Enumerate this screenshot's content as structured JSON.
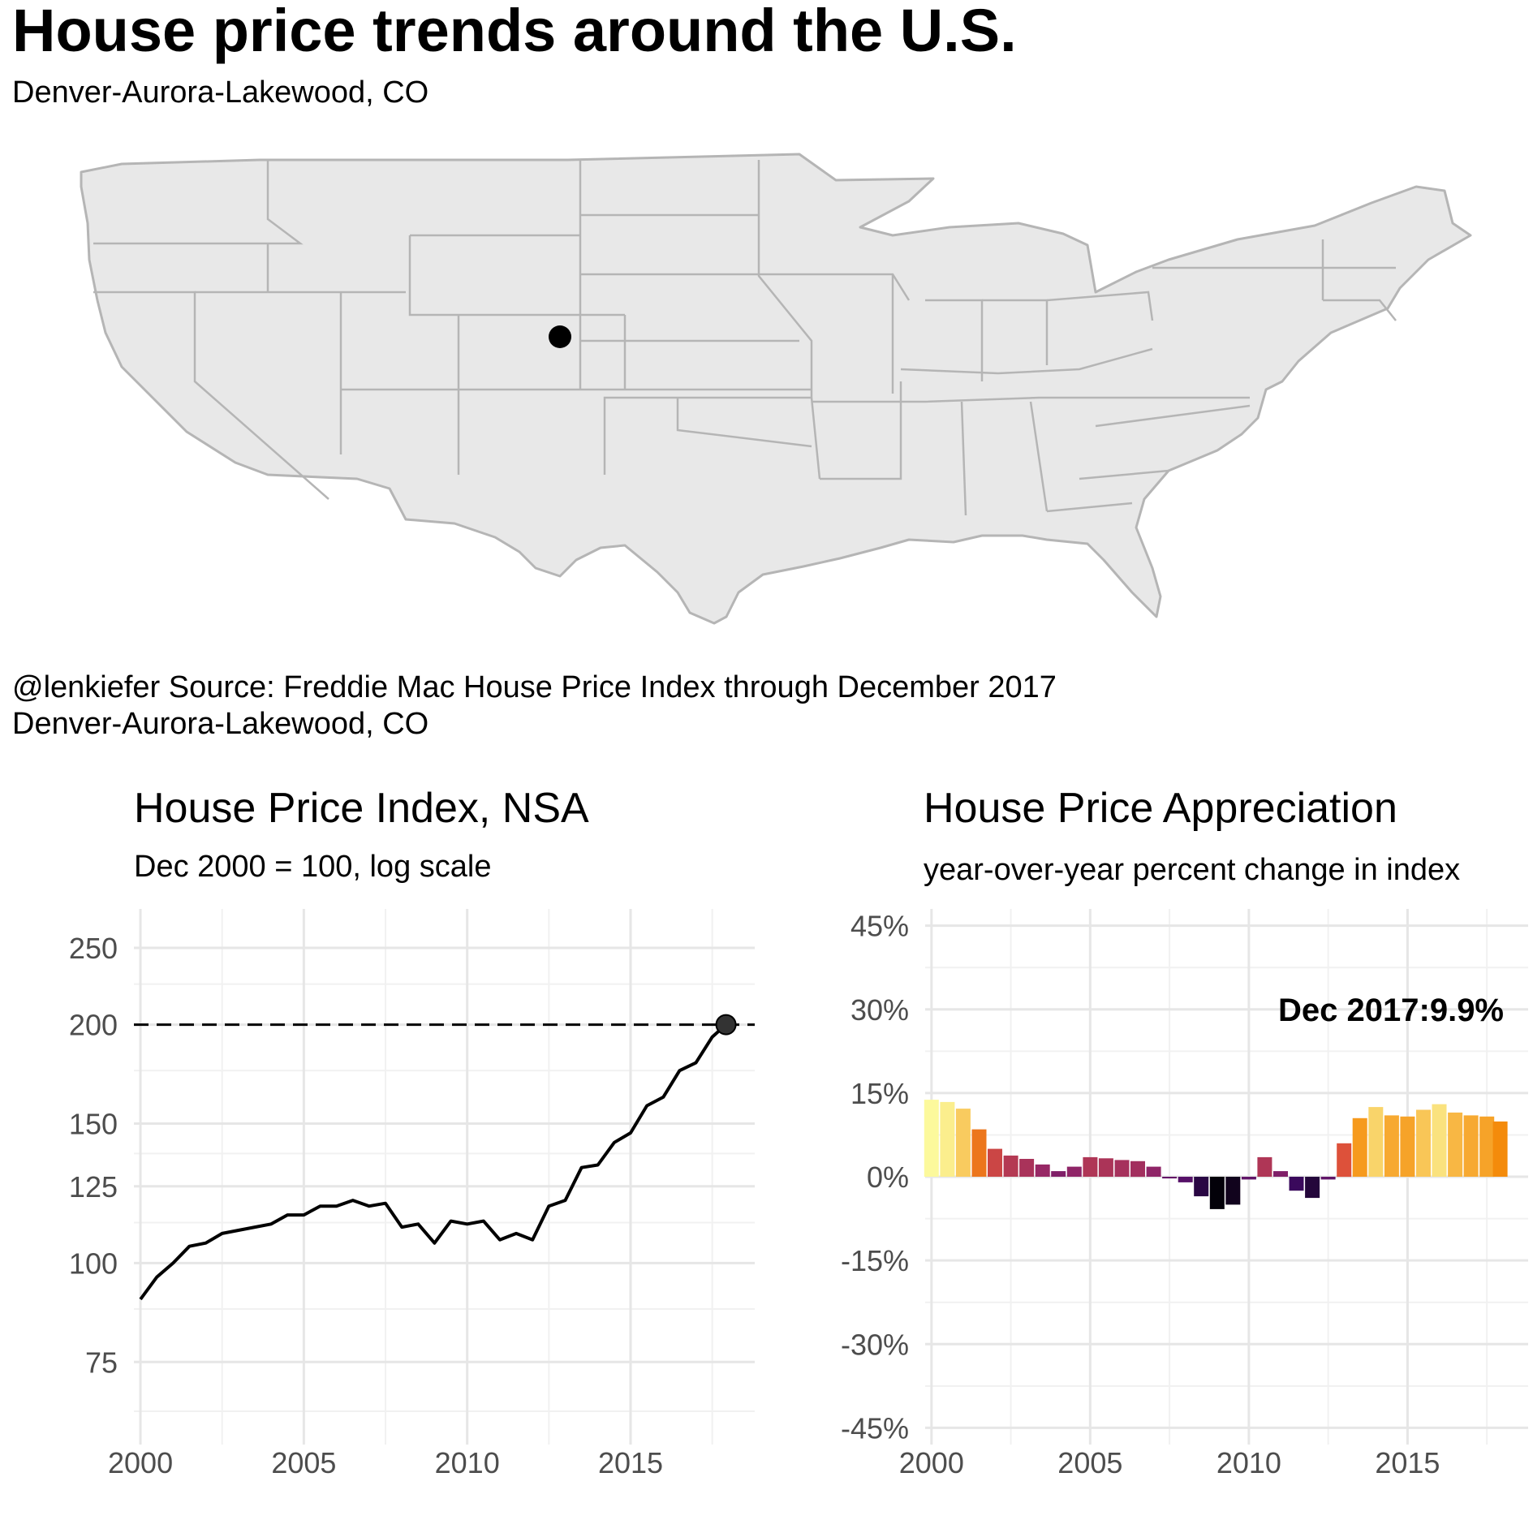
{
  "header": {
    "title": "House price trends around the U.S.",
    "subtitle": "Denver-Aurora-Lakewood, CO"
  },
  "map": {
    "fill": "#e8e8e8",
    "border": "#b5b5b5",
    "marker_color": "#000000",
    "marker_label": "Denver-Aurora-Lakewood, CO"
  },
  "caption": {
    "line1": "@lenkiefer Source: Freddie Mac House Price Index through December 2017",
    "line2": "Denver-Aurora-Lakewood, CO"
  },
  "chart_data": [
    {
      "type": "line",
      "title": "House Price Index, NSA",
      "subtitle": "Dec 2000 = 100, log scale",
      "xlabel": "",
      "ylabel": "",
      "log_scale": true,
      "xlim": [
        1999.8,
        2018.8
      ],
      "ylim": [
        59,
        280
      ],
      "x_ticks": [
        2000,
        2005,
        2010,
        2015
      ],
      "y_ticks": [
        75,
        100,
        125,
        150,
        200,
        250
      ],
      "reference_line": {
        "y": 200,
        "style": "dashed"
      },
      "end_point": {
        "x": 2017.92,
        "y": 200
      },
      "series": [
        {
          "x": [
            2000.0,
            2000.5,
            2001.0,
            2001.5,
            2002.0,
            2002.5,
            2003.0,
            2003.5,
            2004.0,
            2004.5,
            2005.0,
            2005.5,
            2006.0,
            2006.5,
            2007.0,
            2007.5,
            2008.0,
            2008.5,
            2009.0,
            2009.5,
            2010.0,
            2010.5,
            2011.0,
            2011.5,
            2012.0,
            2012.5,
            2013.0,
            2013.5,
            2014.0,
            2014.5,
            2015.0,
            2015.5,
            2016.0,
            2016.5,
            2017.0,
            2017.5,
            2017.92
          ],
          "values": [
            90,
            96,
            100,
            105,
            106,
            109,
            110,
            111,
            112,
            115,
            115,
            118,
            118,
            120,
            118,
            119,
            111,
            112,
            106,
            113,
            112,
            113,
            107,
            109,
            107,
            118,
            120,
            132,
            133,
            142,
            146,
            158,
            162,
            175,
            179,
            193,
            200
          ]
        }
      ]
    },
    {
      "type": "bar",
      "title": "House Price Appreciation",
      "subtitle": "year-over-year percent change in index",
      "xlabel": "",
      "ylabel": "",
      "xlim": [
        1999.8,
        2018.8
      ],
      "ylim": [
        -48,
        48
      ],
      "x_ticks": [
        2000,
        2005,
        2010,
        2015
      ],
      "y_ticks": [
        -45,
        -30,
        -15,
        0,
        15,
        30,
        45
      ],
      "y_tick_labels": [
        "-45%",
        "-30%",
        "-15%",
        "0%",
        "15%",
        "30%",
        "45%"
      ],
      "annotation": "Dec 2017:9.9%",
      "series": [
        {
          "name": "",
          "x": [
            2000.0,
            2000.5,
            2001.0,
            2001.5,
            2002.0,
            2002.5,
            2003.0,
            2003.5,
            2004.0,
            2004.5,
            2005.0,
            2005.5,
            2006.0,
            2006.5,
            2007.0,
            2007.5,
            2008.0,
            2008.5,
            2009.0,
            2009.5,
            2010.0,
            2010.5,
            2011.0,
            2011.5,
            2012.0,
            2012.5,
            2013.0,
            2013.5,
            2014.0,
            2014.5,
            2015.0,
            2015.5,
            2016.0,
            2016.5,
            2017.0,
            2017.5,
            2017.92
          ],
          "values": [
            13.8,
            13.4,
            12.2,
            8.5,
            5.0,
            3.8,
            3.2,
            2.2,
            1.0,
            1.8,
            3.5,
            3.3,
            3.0,
            2.8,
            1.8,
            -0.3,
            -1.0,
            -3.5,
            -5.8,
            -5.0,
            -0.5,
            3.5,
            1.0,
            -2.5,
            -3.8,
            -0.5,
            6.0,
            10.5,
            12.5,
            11.0,
            10.8,
            12.0,
            13.0,
            11.5,
            11.0,
            10.8,
            9.9
          ]
        }
      ]
    }
  ]
}
